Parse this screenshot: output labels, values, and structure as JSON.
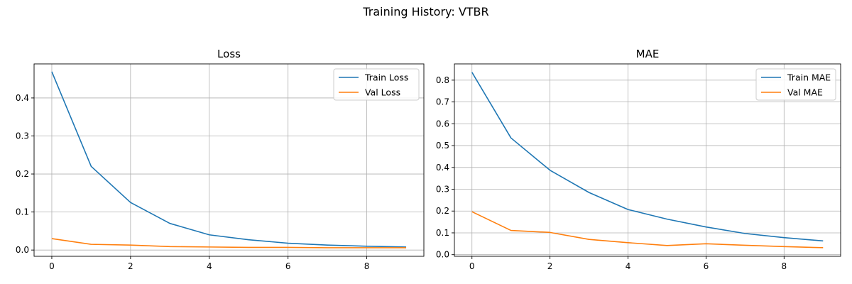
{
  "figure": {
    "suptitle": "Training History: VTBR"
  },
  "chart_data": [
    {
      "type": "line",
      "title": "Loss",
      "xlabel": "",
      "ylabel": "",
      "x": [
        0,
        1,
        2,
        3,
        4,
        5,
        6,
        7,
        8,
        9
      ],
      "xticks": [
        0,
        2,
        4,
        6,
        8
      ],
      "yticks": [
        0.0,
        0.1,
        0.2,
        0.3,
        0.4
      ],
      "ytick_labels": [
        "0.0",
        "0.1",
        "0.2",
        "0.3",
        "0.4"
      ],
      "xlim": [
        -0.45,
        9.45
      ],
      "ylim": [
        -0.0165,
        0.4895
      ],
      "grid": true,
      "legend": "top-right",
      "series": [
        {
          "name": "Train Loss",
          "color": "#1f77b4",
          "values": [
            0.469,
            0.22,
            0.125,
            0.07,
            0.04,
            0.027,
            0.018,
            0.013,
            0.01,
            0.008
          ]
        },
        {
          "name": "Val Loss",
          "color": "#ff7f0e",
          "values": [
            0.03,
            0.015,
            0.013,
            0.009,
            0.008,
            0.007,
            0.007,
            0.006,
            0.006,
            0.006
          ]
        }
      ]
    },
    {
      "type": "line",
      "title": "MAE",
      "xlabel": "",
      "ylabel": "",
      "x": [
        0,
        1,
        2,
        3,
        4,
        5,
        6,
        7,
        8,
        9
      ],
      "xticks": [
        0,
        2,
        4,
        6,
        8
      ],
      "yticks": [
        0.0,
        0.1,
        0.2,
        0.3,
        0.4,
        0.5,
        0.6,
        0.7,
        0.8
      ],
      "ytick_labels": [
        "0.0",
        "0.1",
        "0.2",
        "0.3",
        "0.4",
        "0.5",
        "0.6",
        "0.7",
        "0.8"
      ],
      "xlim": [
        -0.45,
        9.45
      ],
      "ylim": [
        -0.0075,
        0.8745
      ],
      "grid": true,
      "legend": "top-right",
      "series": [
        {
          "name": "Train MAE",
          "color": "#1f77b4",
          "values": [
            0.836,
            0.535,
            0.387,
            0.285,
            0.207,
            0.163,
            0.127,
            0.097,
            0.078,
            0.063
          ]
        },
        {
          "name": "Val MAE",
          "color": "#ff7f0e",
          "values": [
            0.197,
            0.111,
            0.102,
            0.07,
            0.055,
            0.042,
            0.05,
            0.043,
            0.037,
            0.032
          ]
        }
      ]
    }
  ]
}
